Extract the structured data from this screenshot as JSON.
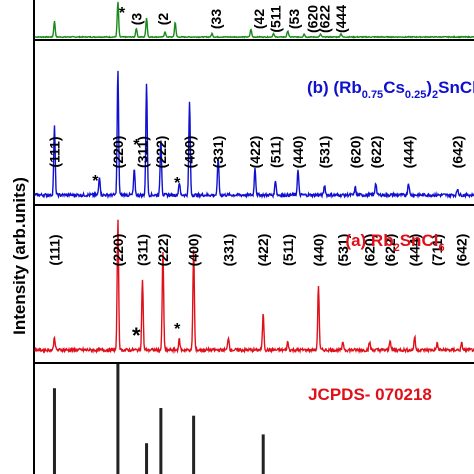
{
  "chart_data": {
    "type": "line",
    "ylabel": "Intensity (arb.units)",
    "panels": [
      {
        "id": "c",
        "color": "#1a8a1a",
        "title": null,
        "peak_labels": [
          {
            "hkl": "(3",
            "x": 0.5
          },
          {
            "hkl": "(2",
            "x": 0.63
          },
          {
            "hkl": "(33",
            "x": 0.89
          },
          {
            "hkl": "(42",
            "x": 1.1
          },
          {
            "hkl": "(511",
            "x": 1.18
          },
          {
            "hkl": "(53",
            "x": 1.27
          },
          {
            "hkl": "(620",
            "x": 1.36
          },
          {
            "hkl": "(622",
            "x": 1.42
          },
          {
            "hkl": "(444",
            "x": 1.5
          }
        ],
        "peaks": [
          {
            "x": 0.1,
            "h": 0.45
          },
          {
            "x": 0.41,
            "h": 1.0
          },
          {
            "x": 0.5,
            "h": 0.25
          },
          {
            "x": 0.55,
            "h": 0.55
          },
          {
            "x": 0.64,
            "h": 0.15
          },
          {
            "x": 0.69,
            "h": 0.42
          },
          {
            "x": 0.87,
            "h": 0.1
          },
          {
            "x": 1.06,
            "h": 0.22
          },
          {
            "x": 1.17,
            "h": 0.1
          },
          {
            "x": 1.24,
            "h": 0.18
          },
          {
            "x": 1.32,
            "h": 0.09
          },
          {
            "x": 1.4,
            "h": 0.08
          },
          {
            "x": 1.5,
            "h": 0.1
          }
        ],
        "impurity_marks": [
          {
            "symbol": "*",
            "x": 0.43
          }
        ]
      },
      {
        "id": "b",
        "color": "#1010d0",
        "title_parts": [
          "(b) (Rb",
          "0.75",
          "Cs",
          "0.25",
          ")",
          "2",
          "SnCl",
          "6"
        ],
        "peak_labels": [
          {
            "hkl": "(111)",
            "x": 0.1
          },
          {
            "hkl": "(220)",
            "x": 0.41
          },
          {
            "hkl": "(311)",
            "x": 0.53
          },
          {
            "hkl": "(222)",
            "x": 0.62
          },
          {
            "hkl": "(400)",
            "x": 0.76
          },
          {
            "hkl": "(331)",
            "x": 0.9
          },
          {
            "hkl": "(422)",
            "x": 1.08
          },
          {
            "hkl": "(511)",
            "x": 1.18
          },
          {
            "hkl": "(440)",
            "x": 1.29
          },
          {
            "hkl": "(531)",
            "x": 1.42
          },
          {
            "hkl": "(620)",
            "x": 1.57
          },
          {
            "hkl": "(622)",
            "x": 1.67
          },
          {
            "hkl": "(444)",
            "x": 1.83
          },
          {
            "hkl": "(642)",
            "x": 2.07
          }
        ],
        "peaks": [
          {
            "x": 0.1,
            "h": 0.55
          },
          {
            "x": 0.32,
            "h": 0.15
          },
          {
            "x": 0.41,
            "h": 1.0
          },
          {
            "x": 0.49,
            "h": 0.2
          },
          {
            "x": 0.55,
            "h": 0.9
          },
          {
            "x": 0.62,
            "h": 0.45
          },
          {
            "x": 0.71,
            "h": 0.1
          },
          {
            "x": 0.76,
            "h": 0.75
          },
          {
            "x": 0.9,
            "h": 0.3
          },
          {
            "x": 1.08,
            "h": 0.22
          },
          {
            "x": 1.18,
            "h": 0.12
          },
          {
            "x": 1.29,
            "h": 0.2
          },
          {
            "x": 1.42,
            "h": 0.08
          },
          {
            "x": 1.57,
            "h": 0.06
          },
          {
            "x": 1.67,
            "h": 0.1
          },
          {
            "x": 1.83,
            "h": 0.1
          },
          {
            "x": 2.07,
            "h": 0.05
          }
        ],
        "impurity_marks": [
          {
            "symbol": "*",
            "x": 0.3
          },
          {
            "symbol": "*",
            "x": 0.5
          },
          {
            "symbol": "*",
            "x": 0.7
          }
        ]
      },
      {
        "id": "a",
        "color": "#e0101a",
        "title_parts": [
          "(a) Rb",
          "2",
          "SnCl",
          "6"
        ],
        "peak_labels": [
          {
            "hkl": "(111)",
            "x": 0.1
          },
          {
            "hkl": "(220)",
            "x": 0.41
          },
          {
            "hkl": "(311)",
            "x": 0.53
          },
          {
            "hkl": "(222)",
            "x": 0.63
          },
          {
            "hkl": "(400)",
            "x": 0.78
          },
          {
            "hkl": "(331)",
            "x": 0.95
          },
          {
            "hkl": "(422)",
            "x": 1.12
          },
          {
            "hkl": "(511)",
            "x": 1.24
          },
          {
            "hkl": "(440)",
            "x": 1.39
          },
          {
            "hkl": "(531)",
            "x": 1.51
          },
          {
            "hkl": "(620)",
            "x": 1.64
          },
          {
            "hkl": "(622)",
            "x": 1.74
          },
          {
            "hkl": "(444)",
            "x": 1.86
          },
          {
            "hkl": "(711)",
            "x": 1.97
          },
          {
            "hkl": "(642)",
            "x": 2.09
          }
        ],
        "peaks": [
          {
            "x": 0.1,
            "h": 0.1
          },
          {
            "x": 0.41,
            "h": 1.0
          },
          {
            "x": 0.53,
            "h": 0.55
          },
          {
            "x": 0.63,
            "h": 0.75
          },
          {
            "x": 0.71,
            "h": 0.08
          },
          {
            "x": 0.78,
            "h": 0.78
          },
          {
            "x": 0.95,
            "h": 0.1
          },
          {
            "x": 1.12,
            "h": 0.28
          },
          {
            "x": 1.24,
            "h": 0.06
          },
          {
            "x": 1.39,
            "h": 0.5
          },
          {
            "x": 1.51,
            "h": 0.06
          },
          {
            "x": 1.64,
            "h": 0.06
          },
          {
            "x": 1.74,
            "h": 0.08
          },
          {
            "x": 1.86,
            "h": 0.1
          },
          {
            "x": 1.97,
            "h": 0.05
          },
          {
            "x": 2.09,
            "h": 0.05
          }
        ],
        "impurity_marks": [
          {
            "symbol": "*",
            "x": 0.5
          },
          {
            "symbol": "*",
            "x": 0.7
          }
        ]
      }
    ],
    "reference": {
      "label": "JCPDS- 070218",
      "sticks": [
        {
          "x": 0.1,
          "h": 0.78
        },
        {
          "x": 0.41,
          "h": 1.0
        },
        {
          "x": 0.55,
          "h": 0.28
        },
        {
          "x": 0.62,
          "h": 0.6
        },
        {
          "x": 0.78,
          "h": 0.53
        },
        {
          "x": 1.12,
          "h": 0.36
        }
      ]
    }
  }
}
